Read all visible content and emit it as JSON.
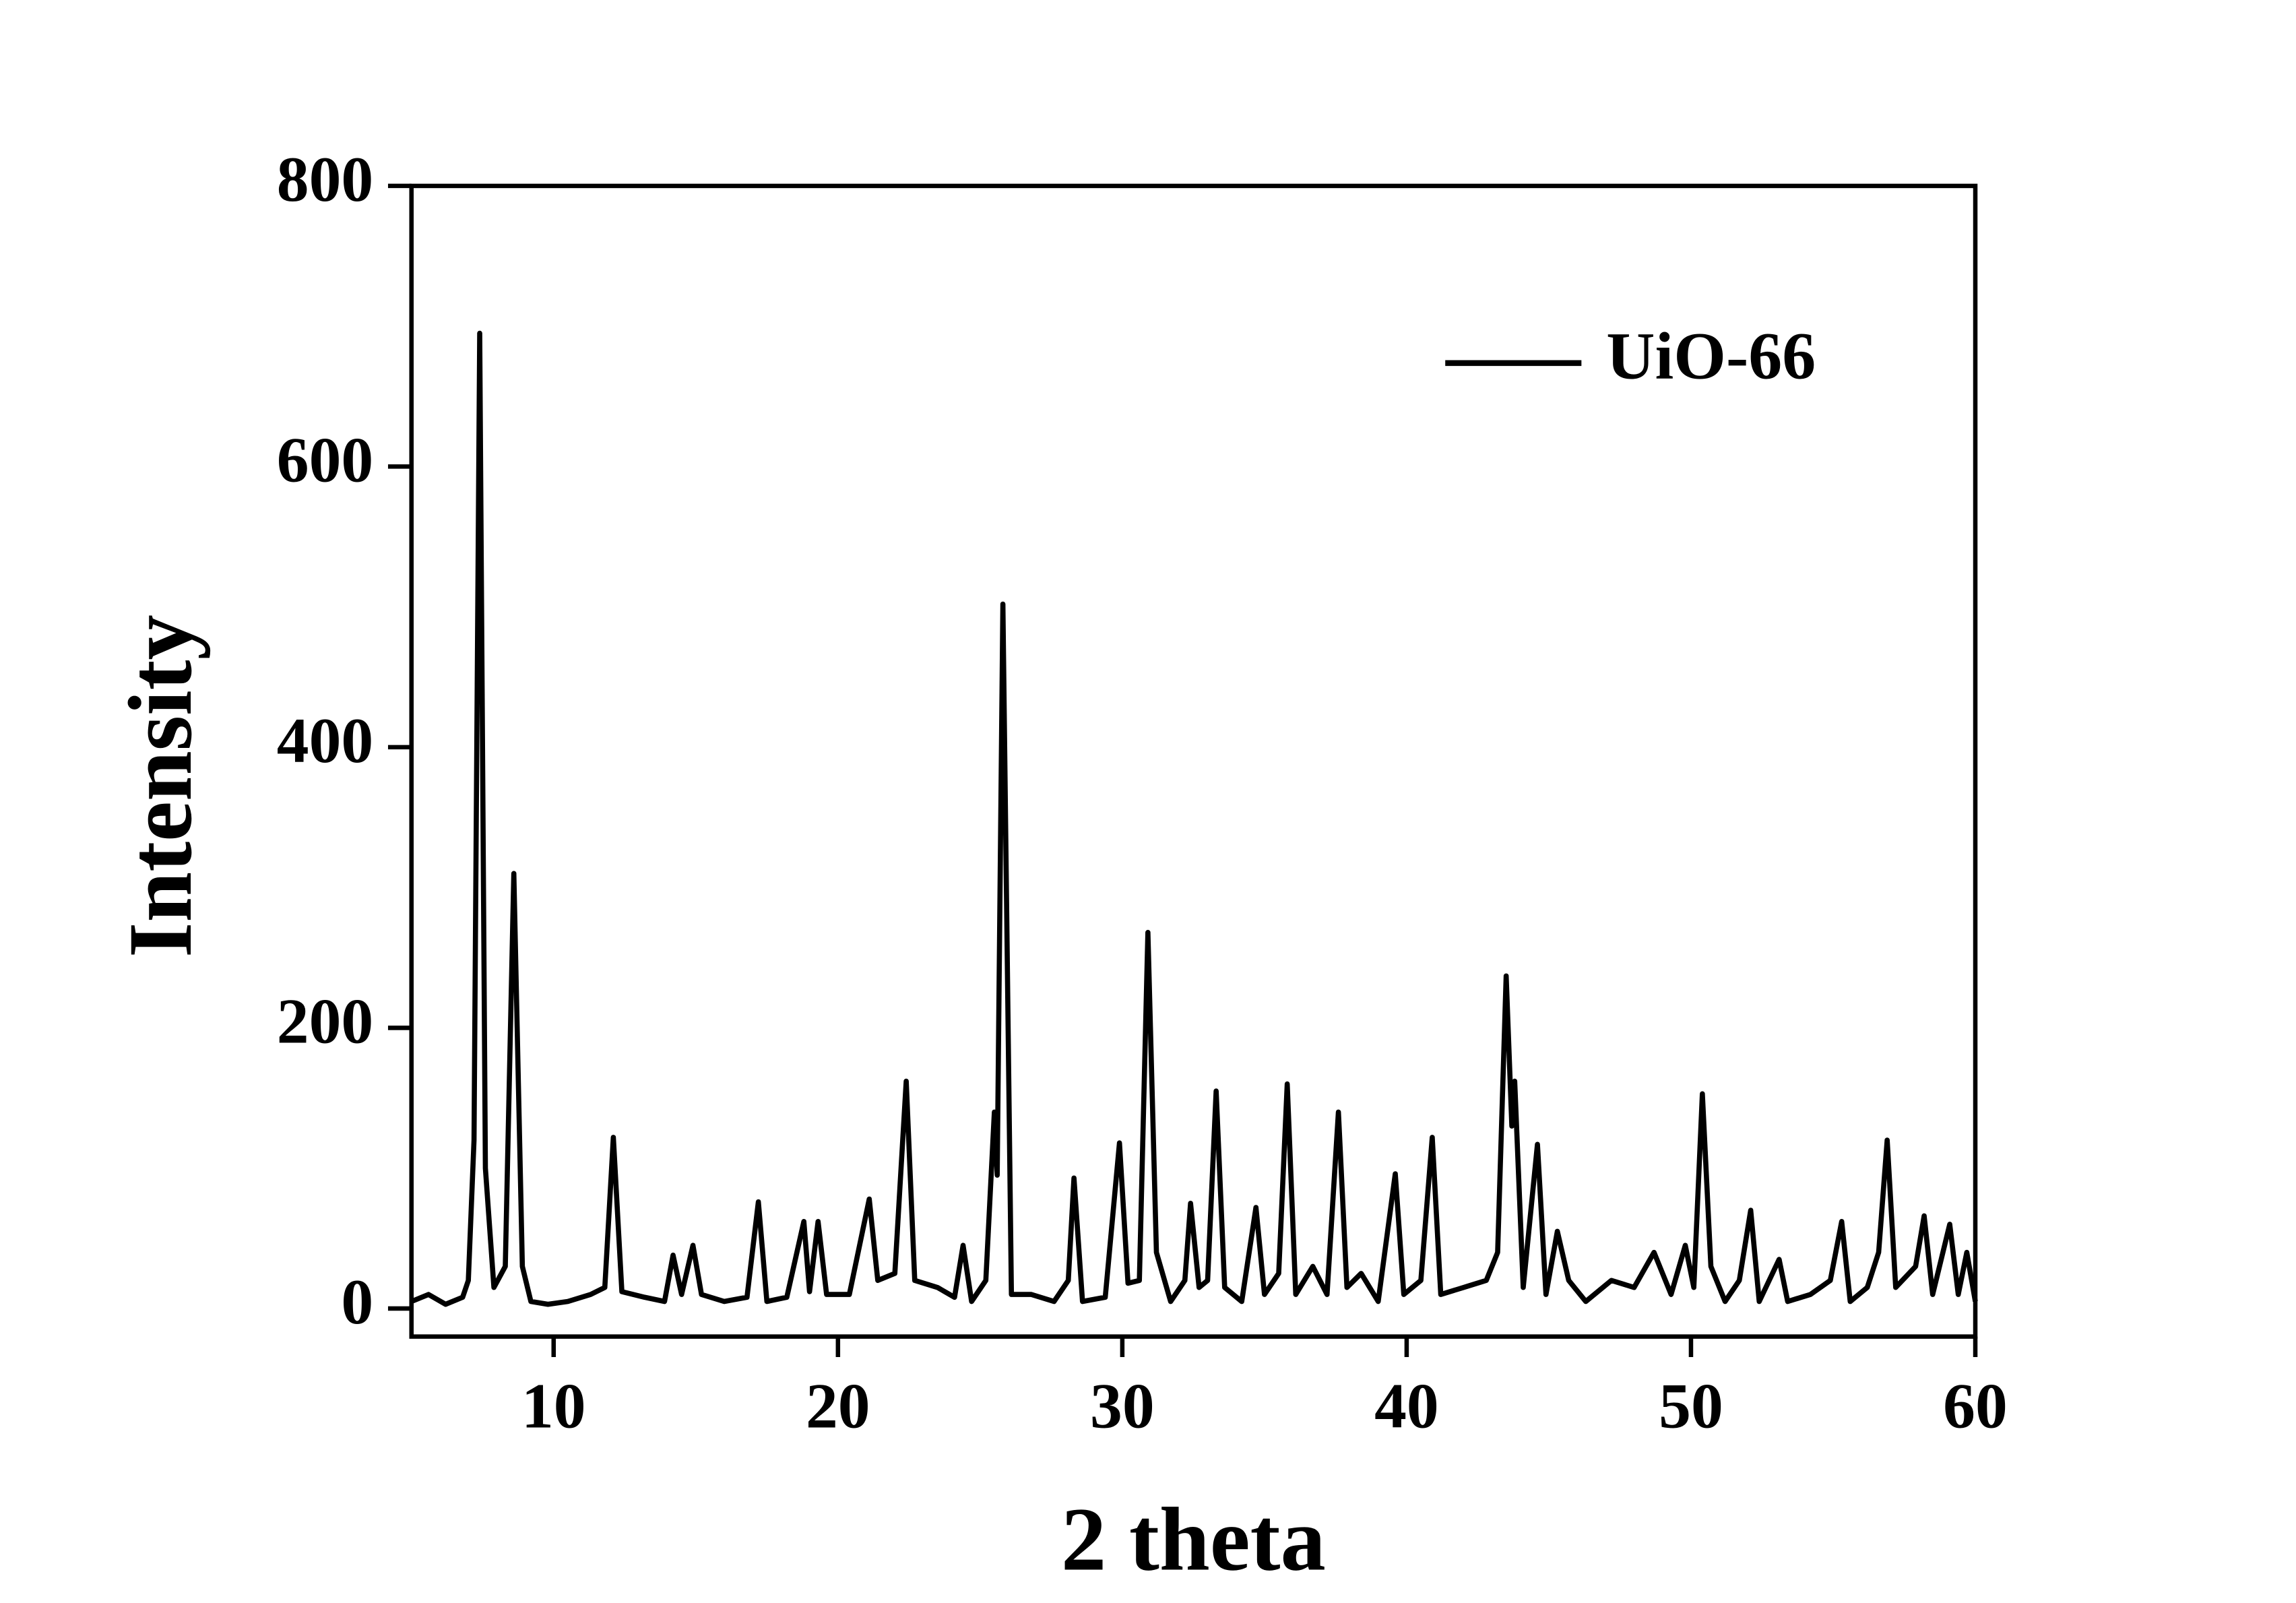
{
  "chart_data": {
    "type": "line",
    "x_label": "2 theta",
    "y_label": "Intensity",
    "xlim": [
      5,
      60
    ],
    "xticks": [
      10,
      20,
      30,
      40,
      50,
      60
    ],
    "ylim": [
      -20,
      800
    ],
    "yticks": [
      0,
      200,
      400,
      600,
      800
    ],
    "legend": "upper right",
    "x": [
      5,
      5.6,
      6.2,
      6.8,
      7.0,
      7.2,
      7.4,
      7.6,
      7.9,
      8.3,
      8.6,
      8.9,
      9.2,
      9.8,
      10.5,
      11.3,
      11.8,
      12.1,
      12.4,
      13.2,
      13.9,
      14.2,
      14.5,
      14.9,
      15.2,
      16.0,
      16.8,
      17.2,
      17.5,
      18.2,
      18.8,
      19.0,
      19.3,
      19.6,
      20.4,
      21.1,
      21.4,
      22.0,
      22.4,
      22.7,
      23.5,
      24.1,
      24.4,
      24.7,
      25.2,
      25.5,
      25.6,
      25.8,
      26.1,
      26.8,
      27.6,
      28.1,
      28.3,
      28.6,
      29.4,
      29.9,
      30.2,
      30.6,
      30.9,
      31.2,
      31.7,
      32.2,
      32.4,
      32.7,
      33.0,
      33.3,
      33.6,
      34.2,
      34.7,
      35.0,
      35.5,
      35.8,
      36.1,
      36.7,
      37.2,
      37.6,
      37.9,
      38.4,
      39.0,
      39.6,
      39.9,
      40.5,
      40.9,
      41.2,
      42.0,
      42.8,
      43.2,
      43.5,
      43.7,
      43.8,
      44.1,
      44.6,
      44.9,
      45.3,
      45.7,
      46.3,
      47.2,
      48.0,
      48.7,
      49.3,
      49.8,
      50.1,
      50.4,
      50.7,
      51.2,
      51.7,
      52.1,
      52.4,
      53.1,
      53.4,
      54.2,
      54.9,
      55.3,
      55.6,
      56.2,
      56.6,
      56.9,
      57.2,
      57.9,
      58.2,
      58.5,
      59.1,
      59.4,
      59.7,
      60.0
    ],
    "series": [
      {
        "name": "UiO-66",
        "color": "#000000",
        "values": [
          5,
          10,
          3,
          8,
          20,
          120,
          695,
          100,
          15,
          30,
          310,
          30,
          5,
          3,
          5,
          10,
          15,
          122,
          12,
          8,
          5,
          38,
          10,
          45,
          10,
          5,
          8,
          76,
          5,
          8,
          62,
          12,
          62,
          10,
          10,
          78,
          20,
          25,
          162,
          20,
          15,
          8,
          45,
          5,
          20,
          140,
          95,
          502,
          10,
          10,
          5,
          20,
          93,
          5,
          8,
          118,
          18,
          20,
          268,
          40,
          5,
          20,
          75,
          15,
          20,
          155,
          15,
          5,
          72,
          10,
          25,
          160,
          10,
          30,
          10,
          140,
          15,
          25,
          5,
          96,
          10,
          20,
          122,
          10,
          15,
          20,
          40,
          237,
          130,
          162,
          15,
          117,
          10,
          55,
          20,
          5,
          20,
          15,
          40,
          10,
          45,
          15,
          153,
          30,
          5,
          20,
          70,
          5,
          35,
          5,
          10,
          20,
          62,
          5,
          15,
          40,
          120,
          15,
          30,
          66,
          10,
          60,
          10,
          40,
          5
        ]
      }
    ]
  }
}
